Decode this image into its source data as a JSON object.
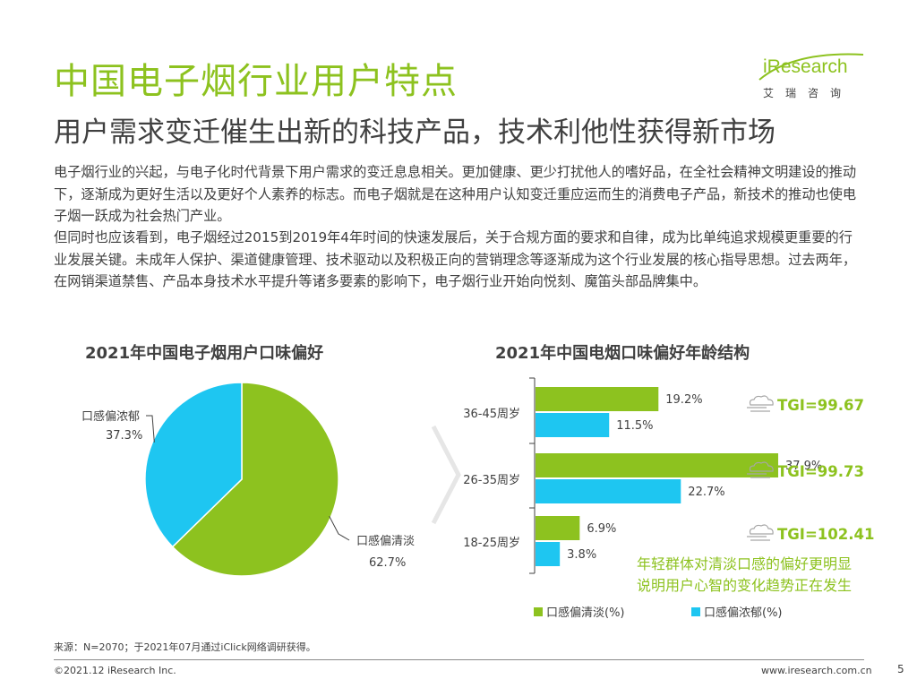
{
  "slide": {
    "title": "中国电子烟行业用户特点",
    "subtitle": "用户需求变迁催生出新的科技产品，技术利他性获得新市场",
    "paragraphs": [
      "电子烟行业的兴起，与电子化时代背景下用户需求的变迁息息相关。更加健康、更少打扰他人的嗜好品，在全社会精神文明建设的推动下，逐渐成为更好生活以及更好个人素养的标志。而电子烟就是在这种用户认知变迁重应运而生的消费电子产品，新技术的推动也使电子烟一跃成为社会热门产业。",
      "但同时也应该看到，电子烟经过2015到2019年4年时间的快速发展后，关于合规方面的要求和自律，成为比单纯追求规模更重要的行业发展关键。未成年人保护、渠道健康管理、技术驱动以及积极正向的营销理念等逐渐成为这个行业发展的核心指导思想。过去两年，在网销渠道禁售、产品本身技术水平提升等诸多要素的影响下，电子烟行业开始向悦刻、魔笛头部品牌集中。"
    ],
    "note": [
      "年轻群体对清淡口感的偏好更明显",
      "说明用户心智的变化趋势正在发生"
    ],
    "source": "来源：N=2070；于2021年07月通过iClick网络调研获得。",
    "copyright": "©2021.12 iResearch Inc.",
    "website": "www.iresearch.com.cn",
    "page_number": "5",
    "logo": {
      "wordmark": "iResearch",
      "chinese": "艾瑞咨询"
    },
    "colors": {
      "green": "#8dc21f",
      "blue": "#1ec6f1",
      "text": "#404040"
    }
  },
  "chart_data": [
    {
      "type": "pie",
      "title": "2021年中国电子烟用户口味偏好",
      "slices": [
        {
          "label": "口感偏清淡",
          "value": 62.7,
          "display": "62.7%",
          "color": "#8dc21f"
        },
        {
          "label": "口感偏浓郁",
          "value": 37.3,
          "display": "37.3%",
          "color": "#1ec6f1"
        }
      ]
    },
    {
      "type": "bar",
      "orientation": "horizontal",
      "title": "2021年中国电烟口味偏好年龄结构",
      "categories": [
        "36-45周岁",
        "26-35周岁",
        "18-25周岁"
      ],
      "series": [
        {
          "name": "口感偏清淡(%)",
          "values": [
            19.2,
            37.9,
            6.9
          ],
          "labels": [
            "19.2%",
            "37.9%",
            "6.9%"
          ],
          "color": "#8dc21f"
        },
        {
          "name": "口感偏浓郁(%)",
          "values": [
            11.5,
            22.7,
            3.8
          ],
          "labels": [
            "11.5%",
            "22.7%",
            "3.8%"
          ],
          "color": "#1ec6f1"
        }
      ],
      "xlim": [
        0,
        40
      ],
      "annotations": [
        "TGI=99.67",
        "TGI=99.73",
        "TGI=102.41"
      ],
      "legend_position": "bottom"
    }
  ]
}
